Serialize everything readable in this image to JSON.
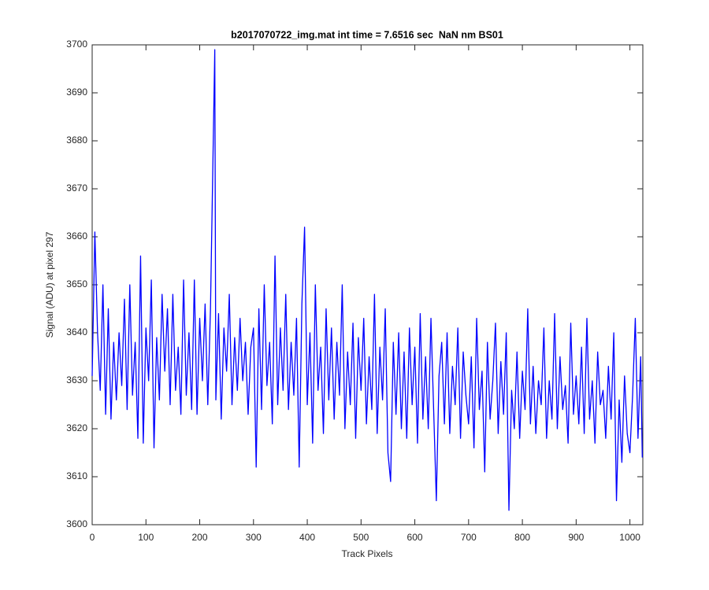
{
  "chart_data": {
    "type": "line",
    "title": "b2017070722_img.mat int time = 7.6516 sec  NaN nm BS01",
    "xlabel": "Track Pixels",
    "ylabel": "Signal (ADU) at pixel 297",
    "color": "#0000ff",
    "x": [
      0,
      5,
      10,
      15,
      20,
      25,
      30,
      35,
      40,
      45,
      50,
      55,
      60,
      65,
      70,
      75,
      80,
      85,
      90,
      95,
      100,
      105,
      110,
      115,
      120,
      125,
      130,
      135,
      140,
      145,
      150,
      155,
      160,
      165,
      170,
      175,
      180,
      185,
      190,
      195,
      200,
      205,
      210,
      215,
      220,
      228,
      230,
      235,
      240,
      245,
      250,
      255,
      260,
      265,
      270,
      275,
      280,
      285,
      290,
      295,
      300,
      305,
      310,
      315,
      320,
      325,
      330,
      335,
      340,
      345,
      350,
      355,
      360,
      365,
      370,
      375,
      380,
      385,
      390,
      395,
      400,
      405,
      410,
      415,
      420,
      425,
      430,
      435,
      440,
      445,
      450,
      455,
      460,
      465,
      470,
      475,
      480,
      485,
      490,
      495,
      500,
      505,
      510,
      515,
      520,
      525,
      530,
      535,
      540,
      545,
      550,
      555,
      560,
      565,
      570,
      575,
      580,
      585,
      590,
      595,
      600,
      605,
      610,
      615,
      620,
      625,
      630,
      635,
      640,
      645,
      650,
      655,
      660,
      665,
      670,
      675,
      680,
      685,
      690,
      695,
      700,
      705,
      710,
      715,
      720,
      725,
      730,
      735,
      740,
      745,
      750,
      755,
      760,
      765,
      770,
      775,
      780,
      785,
      790,
      795,
      800,
      805,
      810,
      815,
      820,
      825,
      830,
      835,
      840,
      845,
      850,
      855,
      860,
      865,
      870,
      875,
      880,
      885,
      890,
      895,
      900,
      905,
      910,
      915,
      920,
      925,
      930,
      935,
      940,
      945,
      950,
      955,
      960,
      965,
      970,
      975,
      980,
      985,
      990,
      995,
      1000,
      1005,
      1010,
      1015,
      1020,
      1023
    ],
    "values": [
      3631,
      3661,
      3640,
      3628,
      3650,
      3623,
      3645,
      3622,
      3638,
      3626,
      3640,
      3629,
      3647,
      3624,
      3650,
      3627,
      3638,
      3618,
      3656,
      3617,
      3641,
      3630,
      3651,
      3616,
      3639,
      3626,
      3648,
      3632,
      3645,
      3625,
      3648,
      3628,
      3637,
      3623,
      3651,
      3627,
      3640,
      3624,
      3651,
      3623,
      3643,
      3630,
      3646,
      3625,
      3645,
      3699,
      3626,
      3644,
      3622,
      3641,
      3632,
      3648,
      3625,
      3639,
      3628,
      3643,
      3630,
      3638,
      3623,
      3637,
      3641,
      3612,
      3645,
      3624,
      3650,
      3629,
      3638,
      3621,
      3656,
      3625,
      3641,
      3628,
      3648,
      3624,
      3638,
      3627,
      3643,
      3612,
      3646,
      3662,
      3625,
      3640,
      3617,
      3650,
      3628,
      3637,
      3619,
      3645,
      3626,
      3641,
      3622,
      3638,
      3627,
      3650,
      3620,
      3636,
      3625,
      3642,
      3618,
      3639,
      3628,
      3643,
      3621,
      3635,
      3624,
      3648,
      3619,
      3637,
      3626,
      3645,
      3615,
      3609,
      3638,
      3623,
      3640,
      3620,
      3636,
      3618,
      3641,
      3625,
      3637,
      3617,
      3644,
      3622,
      3635,
      3620,
      3643,
      3624,
      3605,
      3631,
      3638,
      3621,
      3640,
      3619,
      3633,
      3625,
      3641,
      3618,
      3636,
      3627,
      3621,
      3635,
      3616,
      3643,
      3624,
      3632,
      3611,
      3638,
      3622,
      3630,
      3642,
      3619,
      3634,
      3623,
      3640,
      3603,
      3628,
      3620,
      3636,
      3618,
      3632,
      3624,
      3645,
      3621,
      3633,
      3619,
      3630,
      3625,
      3641,
      3618,
      3630,
      3622,
      3644,
      3620,
      3635,
      3624,
      3629,
      3617,
      3642,
      3623,
      3631,
      3621,
      3637,
      3619,
      3643,
      3622,
      3630,
      3617,
      3636,
      3625,
      3628,
      3618,
      3633,
      3622,
      3640,
      3605,
      3626,
      3613,
      3631,
      3619,
      3615,
      3627,
      3643,
      3618,
      3635,
      3614
    ],
    "xlim": [
      0,
      1024
    ],
    "ylim": [
      3600,
      3700
    ],
    "xticks": [
      0,
      100,
      200,
      300,
      400,
      500,
      600,
      700,
      800,
      900,
      1000
    ],
    "yticks": [
      3600,
      3610,
      3620,
      3630,
      3640,
      3650,
      3660,
      3670,
      3680,
      3690,
      3700
    ]
  }
}
